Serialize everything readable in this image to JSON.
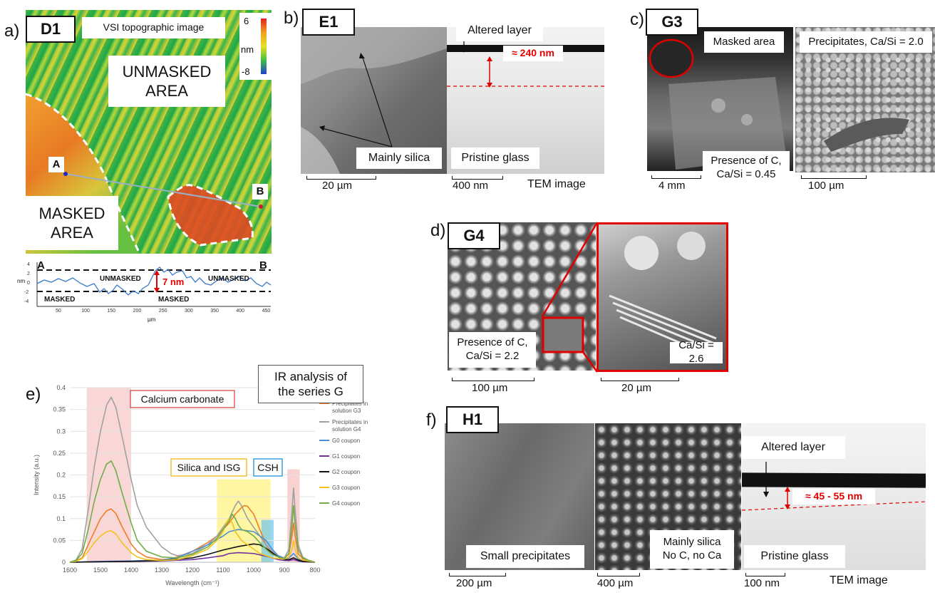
{
  "panels": {
    "a": {
      "label": "a)",
      "tag": "D1",
      "title": "VSI topographic image",
      "colorbar": {
        "max": "6",
        "unit": "nm",
        "min": "-8"
      },
      "unmasked": [
        "UNMASKED",
        "AREA"
      ],
      "masked": [
        "MASKED",
        "AREA"
      ],
      "point_a": "A",
      "point_b": "B",
      "profile": {
        "a": "A",
        "b": "B",
        "step": "7 nm",
        "labels": [
          "UNMASKED",
          "UNMASKED",
          "MASKED",
          "MASKED"
        ],
        "ylabel": "nm",
        "xlabel": "µm",
        "yticks": [
          "4",
          "2",
          "0",
          "-2",
          "-4"
        ],
        "xticks": [
          "50",
          "100",
          "150",
          "200",
          "250",
          "300",
          "350",
          "400",
          "450"
        ]
      }
    },
    "b": {
      "label": "b)",
      "tag": "E1",
      "altered": "Altered layer",
      "thickness": "≈ 240 nm",
      "silica": "Mainly silica",
      "pristine": "Pristine glass",
      "scale1": "20 µm",
      "scale2": "400 nm",
      "tem": "TEM image"
    },
    "c": {
      "label": "c)",
      "tag": "G3",
      "masked": "Masked area",
      "precip": "Precipitates, Ca/Si = 2.0",
      "presence": [
        "Presence of C,",
        "Ca/Si = 0.45"
      ],
      "scale1": "4 mm",
      "scale2": "100 µm"
    },
    "d": {
      "label": "d)",
      "tag": "G4",
      "presence": [
        "Presence of C,",
        "Ca/Si = 2.2"
      ],
      "ratio": "Ca/Si = 2.6",
      "scale1": "100 µm",
      "scale2": "20 µm"
    },
    "e": {
      "label": "e)",
      "title": [
        "IR analysis of",
        "the series G"
      ],
      "carbonate": "Calcium carbonate",
      "silica": "Silica and ISG",
      "csh": "CSH"
    },
    "f": {
      "label": "f)",
      "tag": "H1",
      "small": "Small precipitates",
      "silica": [
        "Mainly silica",
        "No C, no Ca"
      ],
      "altered": "Altered layer",
      "thickness": "≈ 45 - 55 nm",
      "pristine": "Pristine glass",
      "scale1": "200 µm",
      "scale2": "400 µm",
      "scale3": "100 nm",
      "tem": "TEM image"
    }
  },
  "chart_data": {
    "type": "line",
    "xlabel": "Wavelength (cm⁻¹)",
    "ylabel": "Intensity (a.u.)",
    "xlim": [
      1600,
      800
    ],
    "ylim": [
      0,
      0.4
    ],
    "xticks": [
      1600,
      1500,
      1400,
      1300,
      1200,
      1100,
      1000,
      900,
      800
    ],
    "yticks": [
      0,
      0.05,
      0.1,
      0.15,
      0.2,
      0.25,
      0.3,
      0.35,
      0.4
    ],
    "legend_position": "right",
    "series": [
      {
        "name": "Precipitates in solution G3",
        "color": "#f07c2a",
        "x": [
          1600,
          1580,
          1560,
          1540,
          1520,
          1500,
          1480,
          1465,
          1450,
          1430,
          1400,
          1380,
          1350,
          1300,
          1270,
          1250,
          1200,
          1150,
          1120,
          1100,
          1080,
          1060,
          1040,
          1030,
          1020,
          1000,
          980,
          960,
          940,
          920,
          900,
          885,
          875,
          870,
          865,
          855,
          840,
          820,
          800
        ],
        "y": [
          0,
          0.003,
          0.01,
          0.04,
          0.07,
          0.1,
          0.118,
          0.122,
          0.112,
          0.082,
          0.042,
          0.025,
          0.012,
          0.006,
          0.008,
          0.012,
          0.025,
          0.045,
          0.06,
          0.075,
          0.09,
          0.11,
          0.125,
          0.13,
          0.128,
          0.11,
          0.075,
          0.04,
          0.02,
          0.012,
          0.01,
          0.02,
          0.06,
          0.09,
          0.06,
          0.02,
          0.008,
          0.004,
          0
        ]
      },
      {
        "name": "Precipitates in solution G4",
        "color": "#a0a0a0",
        "x": [
          1600,
          1580,
          1560,
          1540,
          1520,
          1500,
          1480,
          1465,
          1450,
          1430,
          1400,
          1380,
          1350,
          1300,
          1270,
          1250,
          1200,
          1150,
          1120,
          1100,
          1080,
          1060,
          1050,
          1040,
          1020,
          1000,
          980,
          960,
          940,
          920,
          900,
          885,
          875,
          870,
          865,
          855,
          840,
          820,
          800
        ],
        "y": [
          0,
          0.005,
          0.03,
          0.12,
          0.22,
          0.3,
          0.36,
          0.378,
          0.355,
          0.29,
          0.19,
          0.13,
          0.08,
          0.035,
          0.02,
          0.015,
          0.02,
          0.04,
          0.06,
          0.08,
          0.1,
          0.13,
          0.14,
          0.13,
          0.1,
          0.08,
          0.06,
          0.04,
          0.025,
          0.015,
          0.01,
          0.03,
          0.12,
          0.17,
          0.12,
          0.04,
          0.012,
          0.004,
          0
        ]
      },
      {
        "name": "G0 coupon",
        "color": "#4a90d9",
        "x": [
          1600,
          1500,
          1400,
          1300,
          1250,
          1200,
          1150,
          1100,
          1080,
          1050,
          1000,
          960,
          940,
          920,
          900,
          885,
          870,
          855,
          840,
          800
        ],
        "y": [
          0,
          0.002,
          0.003,
          0.005,
          0.01,
          0.025,
          0.04,
          0.06,
          0.07,
          0.075,
          0.07,
          0.05,
          0.03,
          0.015,
          0.008,
          0.01,
          0.02,
          0.008,
          0.003,
          0
        ]
      },
      {
        "name": "G1 coupon",
        "color": "#7030a0",
        "x": [
          1600,
          1500,
          1400,
          1300,
          1200,
          1150,
          1100,
          1080,
          1050,
          1000,
          950,
          920,
          900,
          885,
          870,
          855,
          840,
          800
        ],
        "y": [
          0,
          0.001,
          0.002,
          0.003,
          0.006,
          0.01,
          0.015,
          0.02,
          0.022,
          0.02,
          0.012,
          0.006,
          0.004,
          0.004,
          0.006,
          0.003,
          0.001,
          0
        ]
      },
      {
        "name": "G2 coupon",
        "color": "#111111",
        "x": [
          1600,
          1500,
          1400,
          1300,
          1200,
          1150,
          1100,
          1050,
          1000,
          980,
          960,
          940,
          920,
          900,
          885,
          870,
          855,
          840,
          800
        ],
        "y": [
          0,
          0.001,
          0.002,
          0.004,
          0.01,
          0.018,
          0.028,
          0.036,
          0.042,
          0.04,
          0.032,
          0.022,
          0.012,
          0.006,
          0.006,
          0.01,
          0.005,
          0.002,
          0
        ]
      },
      {
        "name": "G3 coupon",
        "color": "#f2c31b",
        "x": [
          1600,
          1580,
          1560,
          1540,
          1520,
          1500,
          1480,
          1465,
          1450,
          1430,
          1400,
          1380,
          1350,
          1300,
          1250,
          1200,
          1150,
          1120,
          1100,
          1090,
          1080,
          1070,
          1060,
          1040,
          1020,
          1000,
          980,
          960,
          940,
          920,
          900,
          885,
          875,
          870,
          865,
          855,
          840,
          800
        ],
        "y": [
          0,
          0.002,
          0.008,
          0.025,
          0.045,
          0.06,
          0.07,
          0.072,
          0.065,
          0.045,
          0.022,
          0.012,
          0.006,
          0.004,
          0.006,
          0.015,
          0.03,
          0.05,
          0.07,
          0.09,
          0.1,
          0.09,
          0.07,
          0.05,
          0.04,
          0.03,
          0.02,
          0.015,
          0.01,
          0.008,
          0.007,
          0.012,
          0.03,
          0.05,
          0.03,
          0.01,
          0.005,
          0
        ]
      },
      {
        "name": "G4 coupon",
        "color": "#70ad47",
        "x": [
          1600,
          1580,
          1560,
          1540,
          1520,
          1500,
          1480,
          1465,
          1450,
          1430,
          1400,
          1380,
          1350,
          1300,
          1250,
          1200,
          1150,
          1120,
          1100,
          1080,
          1070,
          1060,
          1050,
          1040,
          1020,
          1000,
          980,
          960,
          940,
          920,
          900,
          885,
          875,
          870,
          865,
          855,
          840,
          820,
          800
        ],
        "y": [
          0,
          0.004,
          0.02,
          0.075,
          0.14,
          0.19,
          0.225,
          0.232,
          0.21,
          0.16,
          0.09,
          0.05,
          0.025,
          0.012,
          0.01,
          0.018,
          0.035,
          0.055,
          0.075,
          0.095,
          0.11,
          0.1,
          0.085,
          0.075,
          0.07,
          0.06,
          0.045,
          0.03,
          0.018,
          0.012,
          0.008,
          0.02,
          0.085,
          0.13,
          0.09,
          0.03,
          0.01,
          0.004,
          0
        ]
      }
    ]
  }
}
